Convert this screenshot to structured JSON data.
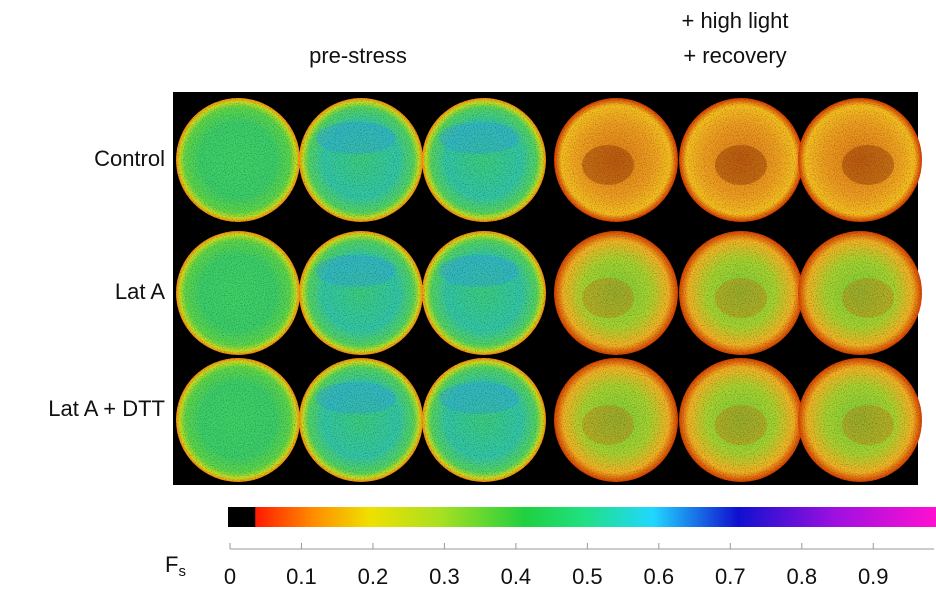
{
  "headers": {
    "pre": "pre-stress",
    "post_line1": "+ high light",
    "post_line2": "+ recovery"
  },
  "rows": [
    "Control",
    "Lat A",
    "Lat A + DTT"
  ],
  "colorbar": {
    "label": "F",
    "label_sub": "s",
    "lim": [
      0,
      0.985
    ],
    "ticks": [
      0,
      0.1,
      0.2,
      0.3,
      0.4,
      0.5,
      0.6,
      0.7,
      0.8,
      0.9
    ]
  }
}
